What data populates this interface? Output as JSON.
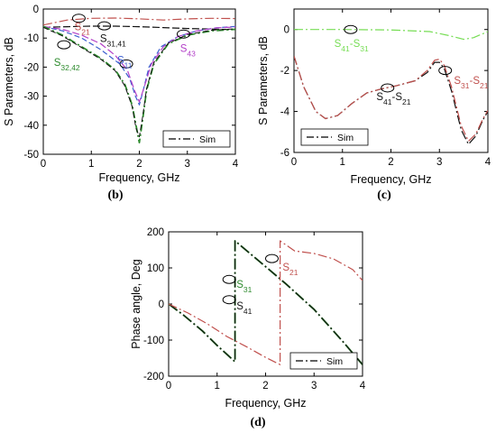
{
  "chart_data": [
    {
      "id": "b",
      "type": "line",
      "panel_label": "(b)",
      "xlabel": "Frequency, GHz",
      "ylabel": "S Parameters, dB",
      "xlim": [
        0,
        4
      ],
      "ylim": [
        -50,
        0
      ],
      "xticks": [
        0,
        1,
        2,
        3,
        4
      ],
      "yticks": [
        0,
        -10,
        -20,
        -30,
        -40,
        -50
      ],
      "legend": {
        "label": "Sim",
        "placement": "bottom-right"
      },
      "series": [
        {
          "key": "S21",
          "color": "#c0504d",
          "dash": "10 3 2 3",
          "width": 1.2,
          "x": [
            0,
            0.5,
            1,
            1.5,
            2,
            2.5,
            3,
            3.5,
            4
          ],
          "y": [
            -5.5,
            -3.8,
            -3.2,
            -3.1,
            -3.4,
            -3.8,
            -3.4,
            -3.2,
            -3.3
          ]
        },
        {
          "key": "S31",
          "color": "#111111",
          "dash": "8 3",
          "width": 1.2,
          "x": [
            0,
            0.5,
            1,
            1.5,
            2,
            2.5,
            3,
            3.5,
            4
          ],
          "y": [
            -6.3,
            -6.1,
            -5.9,
            -5.9,
            -6.1,
            -6.4,
            -6.7,
            -6.9,
            -7.1
          ]
        },
        {
          "key": "S11",
          "color": "#3c5fcf",
          "dash": "6 3",
          "width": 1.2,
          "x": [
            0,
            0.4,
            0.8,
            1.2,
            1.6,
            1.8,
            1.92,
            2,
            2.08,
            2.2,
            2.45,
            2.8,
            3.2,
            3.6,
            4
          ],
          "y": [
            -6,
            -7.5,
            -10,
            -14,
            -19,
            -24,
            -30,
            -33,
            -28,
            -20,
            -13,
            -9.5,
            -7.5,
            -6.5,
            -6
          ]
        },
        {
          "key": "S43",
          "color": "#b340c8",
          "dash": "8 3",
          "width": 1.2,
          "x": [
            0,
            0.4,
            0.8,
            1.2,
            1.5,
            1.75,
            1.9,
            2,
            2.1,
            2.25,
            2.5,
            2.8,
            3.2,
            3.6,
            4
          ],
          "y": [
            -6,
            -7,
            -9,
            -12,
            -16,
            -21,
            -28,
            -32,
            -27,
            -19,
            -13,
            -9.5,
            -7.5,
            -6.5,
            -6.2
          ]
        },
        {
          "key": "S32",
          "color": "#2e8b2e",
          "dash": "8 3 2 3",
          "width": 1.8,
          "x": [
            0,
            0.4,
            0.8,
            1.2,
            1.5,
            1.7,
            1.85,
            1.93,
            2,
            2.07,
            2.15,
            2.3,
            2.6,
            3,
            3.5,
            4
          ],
          "y": [
            -6,
            -9,
            -13,
            -17,
            -21,
            -26,
            -33,
            -40,
            -46,
            -38,
            -28,
            -19,
            -12,
            -9,
            -7.5,
            -7
          ]
        },
        {
          "key": "S42",
          "color": "#111111",
          "dash": "6 3",
          "width": 1.0,
          "x": [
            0,
            0.4,
            0.8,
            1.2,
            1.5,
            1.7,
            1.85,
            1.93,
            2,
            2.07,
            2.15,
            2.3,
            2.6,
            3,
            3.5,
            4
          ],
          "y": [
            -6.3,
            -9.3,
            -13.3,
            -17.3,
            -21.3,
            -26.5,
            -33.5,
            -41,
            -44,
            -37,
            -27.5,
            -18.5,
            -11.8,
            -8.8,
            -7.3,
            -6.8
          ]
        }
      ],
      "annotations": [
        {
          "main": "S",
          "sub": "21",
          "color": "#c0504d",
          "at": [
            0.65,
            -7.3
          ]
        },
        {
          "main": "S",
          "sub": "31,41",
          "color": "#111111",
          "at": [
            1.18,
            -11.3
          ]
        },
        {
          "main": "S",
          "sub": "32,42",
          "color": "#2e8b2e",
          "at": [
            0.22,
            -19.6
          ]
        },
        {
          "main": "S",
          "sub": "11",
          "color": "#3c5fcf",
          "at": [
            1.54,
            -18.8
          ]
        },
        {
          "main": "S",
          "sub": "43",
          "color": "#b340c8",
          "at": [
            2.85,
            -14.8
          ]
        }
      ],
      "ellipses": [
        [
          0.74,
          -3.2
        ],
        [
          1.27,
          -5.8
        ],
        [
          0.43,
          -12.3
        ],
        [
          1.73,
          -18.9
        ],
        [
          2.92,
          -8.6
        ]
      ]
    },
    {
      "id": "c",
      "type": "line",
      "panel_label": "(c)",
      "xlabel": "Frequency, GHz",
      "ylabel": "S Parameters, dB",
      "xlim": [
        0,
        4
      ],
      "ylim": [
        -6,
        1
      ],
      "xticks": [
        0,
        1,
        2,
        3,
        4
      ],
      "yticks": [
        0,
        -2,
        -4,
        -6
      ],
      "legend": {
        "label": "Sim",
        "placement": "bottom-left"
      },
      "series": [
        {
          "key": "S41-S31",
          "color": "#77dd55",
          "dash": "10 3 2 3",
          "width": 1.2,
          "x": [
            0,
            1,
            2,
            2.8,
            3.2,
            3.5,
            3.7,
            3.9,
            4
          ],
          "y": [
            0,
            0,
            -0.02,
            -0.1,
            -0.3,
            -0.48,
            -0.4,
            -0.2,
            -0.1
          ]
        },
        {
          "key": "S41-S21",
          "color": "#111111",
          "dash": "10 3 2 3",
          "width": 1.2,
          "x": [
            0,
            0.2,
            0.45,
            0.65,
            0.9,
            1.2,
            1.5,
            1.8,
            2.1,
            2.5,
            2.75,
            2.9,
            3.0,
            3.1,
            3.25,
            3.45,
            3.6,
            3.75,
            3.9,
            4
          ],
          "y": [
            -1.3,
            -2.8,
            -4.0,
            -4.35,
            -4.2,
            -3.6,
            -3.1,
            -2.9,
            -2.75,
            -2.5,
            -2.1,
            -1.6,
            -1.6,
            -1.9,
            -3.0,
            -4.9,
            -5.6,
            -5.2,
            -4.4,
            -4.0
          ]
        },
        {
          "key": "S31-S21",
          "color": "#c0504d",
          "dash": "10 3 2 3",
          "width": 1.2,
          "x": [
            0,
            0.2,
            0.45,
            0.65,
            0.9,
            1.2,
            1.5,
            1.8,
            2.1,
            2.5,
            2.75,
            2.9,
            3.0,
            3.1,
            3.25,
            3.45,
            3.6,
            3.75,
            3.9,
            4
          ],
          "y": [
            -1.3,
            -2.8,
            -4.0,
            -4.35,
            -4.2,
            -3.6,
            -3.1,
            -2.9,
            -2.75,
            -2.5,
            -2.0,
            -1.5,
            -1.45,
            -1.75,
            -2.8,
            -4.7,
            -5.45,
            -5.1,
            -4.35,
            -3.95
          ]
        }
      ],
      "annotations": [
        {
          "parts": [
            {
              "main": "S",
              "sub": "41"
            },
            {
              "main": "-S",
              "sub": "31"
            }
          ],
          "color": "#77dd55",
          "at": [
            0.83,
            -0.85
          ]
        },
        {
          "parts": [
            {
              "main": "S",
              "sub": "41"
            },
            {
              "main": "-S",
              "sub": "21"
            }
          ],
          "color": "#111111",
          "at": [
            1.7,
            -3.45
          ]
        },
        {
          "parts": [
            {
              "main": "S",
              "sub": "31"
            },
            {
              "main": "-S",
              "sub": "21"
            }
          ],
          "color": "#c0504d",
          "at": [
            3.3,
            -2.65
          ]
        }
      ],
      "ellipses": [
        [
          1.17,
          0.0
        ],
        [
          1.93,
          -2.85
        ],
        [
          3.12,
          -2.0
        ]
      ]
    },
    {
      "id": "d",
      "type": "line",
      "panel_label": "(d)",
      "xlabel": "Frequency, GHz",
      "ylabel": "Phase angle, Deg",
      "xlim": [
        0,
        4
      ],
      "ylim": [
        -200,
        200
      ],
      "xticks": [
        0,
        1,
        2,
        3,
        4
      ],
      "yticks": [
        200,
        100,
        0,
        -100,
        -200
      ],
      "legend": {
        "label": "Sim",
        "placement": "bottom-right"
      },
      "series": [
        {
          "key": "S31",
          "color": "#2d7a2d",
          "dash": "12 3 2 3",
          "width": 2.0,
          "x": [
            0,
            0.3,
            0.7,
            1.0,
            1.37,
            1.37,
            1.9,
            2.4,
            3.0,
            3.6,
            4.0
          ],
          "y": [
            0,
            -30,
            -75,
            -115,
            -160,
            175,
            115,
            58,
            -15,
            -105,
            -168
          ]
        },
        {
          "key": "S41",
          "color": "#111111",
          "dash": "12 3 2 3",
          "width": 1.0,
          "x": [
            0,
            0.3,
            0.7,
            1.0,
            1.37,
            1.37,
            1.9,
            2.4,
            3.0,
            3.6,
            4.0
          ],
          "y": [
            0,
            -30,
            -75,
            -115,
            -160,
            175,
            115,
            58,
            -15,
            -105,
            -168
          ]
        },
        {
          "key": "S21",
          "color": "#c0504d",
          "dash": "10 3 2 3",
          "width": 1.2,
          "x": [
            0,
            0.4,
            0.8,
            1.2,
            1.6,
            2.0,
            2.3,
            2.3,
            2.6,
            3.0,
            3.4,
            3.8,
            4.0
          ],
          "y": [
            0,
            -25,
            -55,
            -90,
            -118,
            -148,
            -168,
            175,
            147,
            140,
            125,
            95,
            65
          ]
        }
      ],
      "annotations": [
        {
          "main": "S",
          "sub": "21",
          "color": "#c0504d",
          "at": [
            2.35,
            93
          ]
        },
        {
          "main": "S",
          "sub": "31",
          "color": "#2e8b2e",
          "at": [
            1.4,
            45
          ]
        },
        {
          "main": "S",
          "sub": "41",
          "color": "#111111",
          "at": [
            1.4,
            -15
          ]
        }
      ],
      "ellipses": [
        [
          2.13,
          126
        ],
        [
          1.25,
          68
        ],
        [
          1.25,
          12
        ]
      ]
    }
  ]
}
